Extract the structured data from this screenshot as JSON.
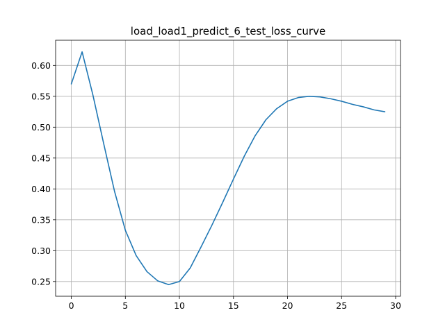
{
  "chart_data": {
    "type": "line",
    "title": "load_load1_predict_6_test_loss_curve",
    "xlabel": "",
    "ylabel": "",
    "xlim": [
      -1.45,
      30.45
    ],
    "ylim": [
      0.2262,
      0.6408
    ],
    "xticks": [
      0,
      5,
      10,
      15,
      20,
      25,
      30
    ],
    "xtick_labels": [
      "0",
      "5",
      "10",
      "15",
      "20",
      "25",
      "30"
    ],
    "yticks": [
      0.25,
      0.3,
      0.35,
      0.4,
      0.45,
      0.5,
      0.55,
      0.6
    ],
    "ytick_labels": [
      "0.25",
      "0.30",
      "0.35",
      "0.40",
      "0.45",
      "0.50",
      "0.55",
      "0.60"
    ],
    "grid": true,
    "legend": "none",
    "series": [
      {
        "color": "#1f77b4",
        "x": [
          0,
          1,
          2,
          3,
          4,
          5,
          6,
          7,
          8,
          9,
          10,
          11,
          12,
          13,
          14,
          15,
          16,
          17,
          18,
          19,
          20,
          21,
          22,
          23,
          24,
          25,
          26,
          27,
          28,
          29
        ],
        "values": [
          0.57,
          0.622,
          0.552,
          0.473,
          0.396,
          0.333,
          0.292,
          0.266,
          0.251,
          0.245,
          0.25,
          0.272,
          0.306,
          0.341,
          0.378,
          0.416,
          0.453,
          0.486,
          0.512,
          0.53,
          0.542,
          0.548,
          0.55,
          0.549,
          0.546,
          0.542,
          0.537,
          0.533,
          0.528,
          0.525
        ]
      }
    ]
  }
}
